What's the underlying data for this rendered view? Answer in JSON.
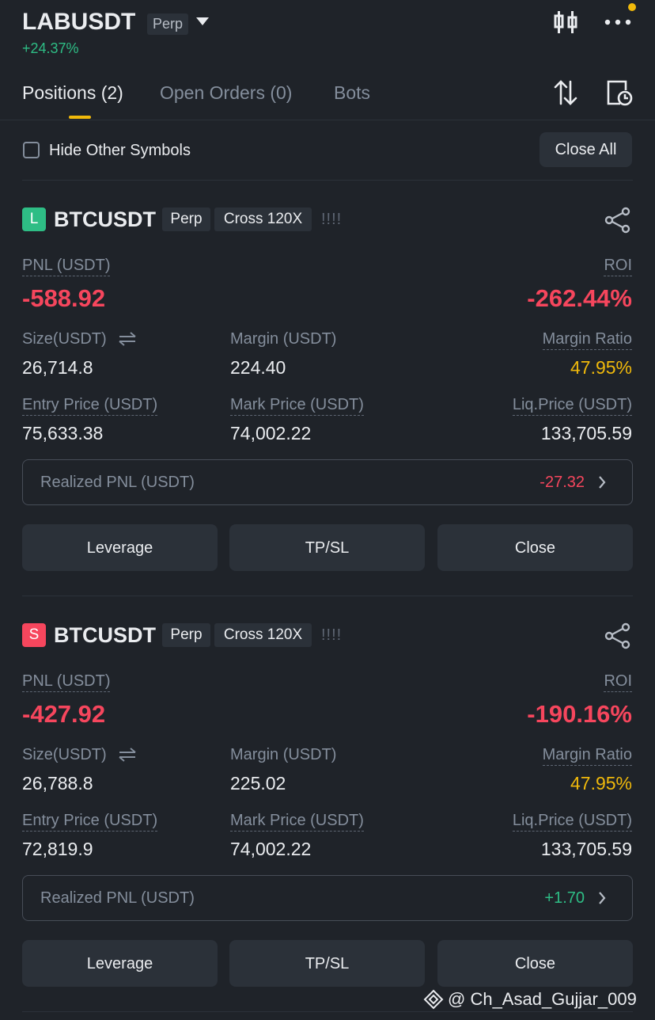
{
  "header": {
    "symbol": "LABUSDT",
    "badge": "Perp",
    "change": "+24.37%"
  },
  "tabs": [
    "Positions (2)",
    "Open Orders (0)",
    "Bots"
  ],
  "filter": {
    "label": "Hide Other Symbols",
    "button": "Close All"
  },
  "positions": [
    {
      "side": "L",
      "symbol": "BTCUSDT",
      "type": "Perp",
      "mode": "Cross 120X",
      "risk": "!!!!",
      "pnl_label": "PNL (USDT)",
      "pnl": "-588.92",
      "roi_label": "ROI",
      "roi": "-262.44%",
      "size_label": "Size(USDT)",
      "size": "26,714.8",
      "margin_label": "Margin (USDT)",
      "margin": "224.40",
      "margin_ratio_label": "Margin Ratio",
      "margin_ratio": "47.95%",
      "entry_label": "Entry Price (USDT)",
      "entry": "75,633.38",
      "mark_label": "Mark Price (USDT)",
      "mark": "74,002.22",
      "liq_label": "Liq.Price (USDT)",
      "liq": "133,705.59",
      "realized_label": "Realized PNL (USDT)",
      "realized": "-27.32",
      "buttons": [
        "Leverage",
        "TP/SL",
        "Close"
      ]
    },
    {
      "side": "S",
      "symbol": "BTCUSDT",
      "type": "Perp",
      "mode": "Cross 120X",
      "risk": "!!!!",
      "pnl_label": "PNL (USDT)",
      "pnl": "-427.92",
      "roi_label": "ROI",
      "roi": "-190.16%",
      "size_label": "Size(USDT)",
      "size": "26,788.8",
      "margin_label": "Margin (USDT)",
      "margin": "225.02",
      "margin_ratio_label": "Margin Ratio",
      "margin_ratio": "47.95%",
      "entry_label": "Entry Price (USDT)",
      "entry": "72,819.9",
      "mark_label": "Mark Price (USDT)",
      "mark": "74,002.22",
      "liq_label": "Liq.Price (USDT)",
      "liq": "133,705.59",
      "realized_label": "Realized PNL (USDT)",
      "realized": "+1.70",
      "buttons": [
        "Leverage",
        "TP/SL",
        "Close"
      ]
    }
  ],
  "watermark": "@ Ch_Asad_Gujjar_009"
}
